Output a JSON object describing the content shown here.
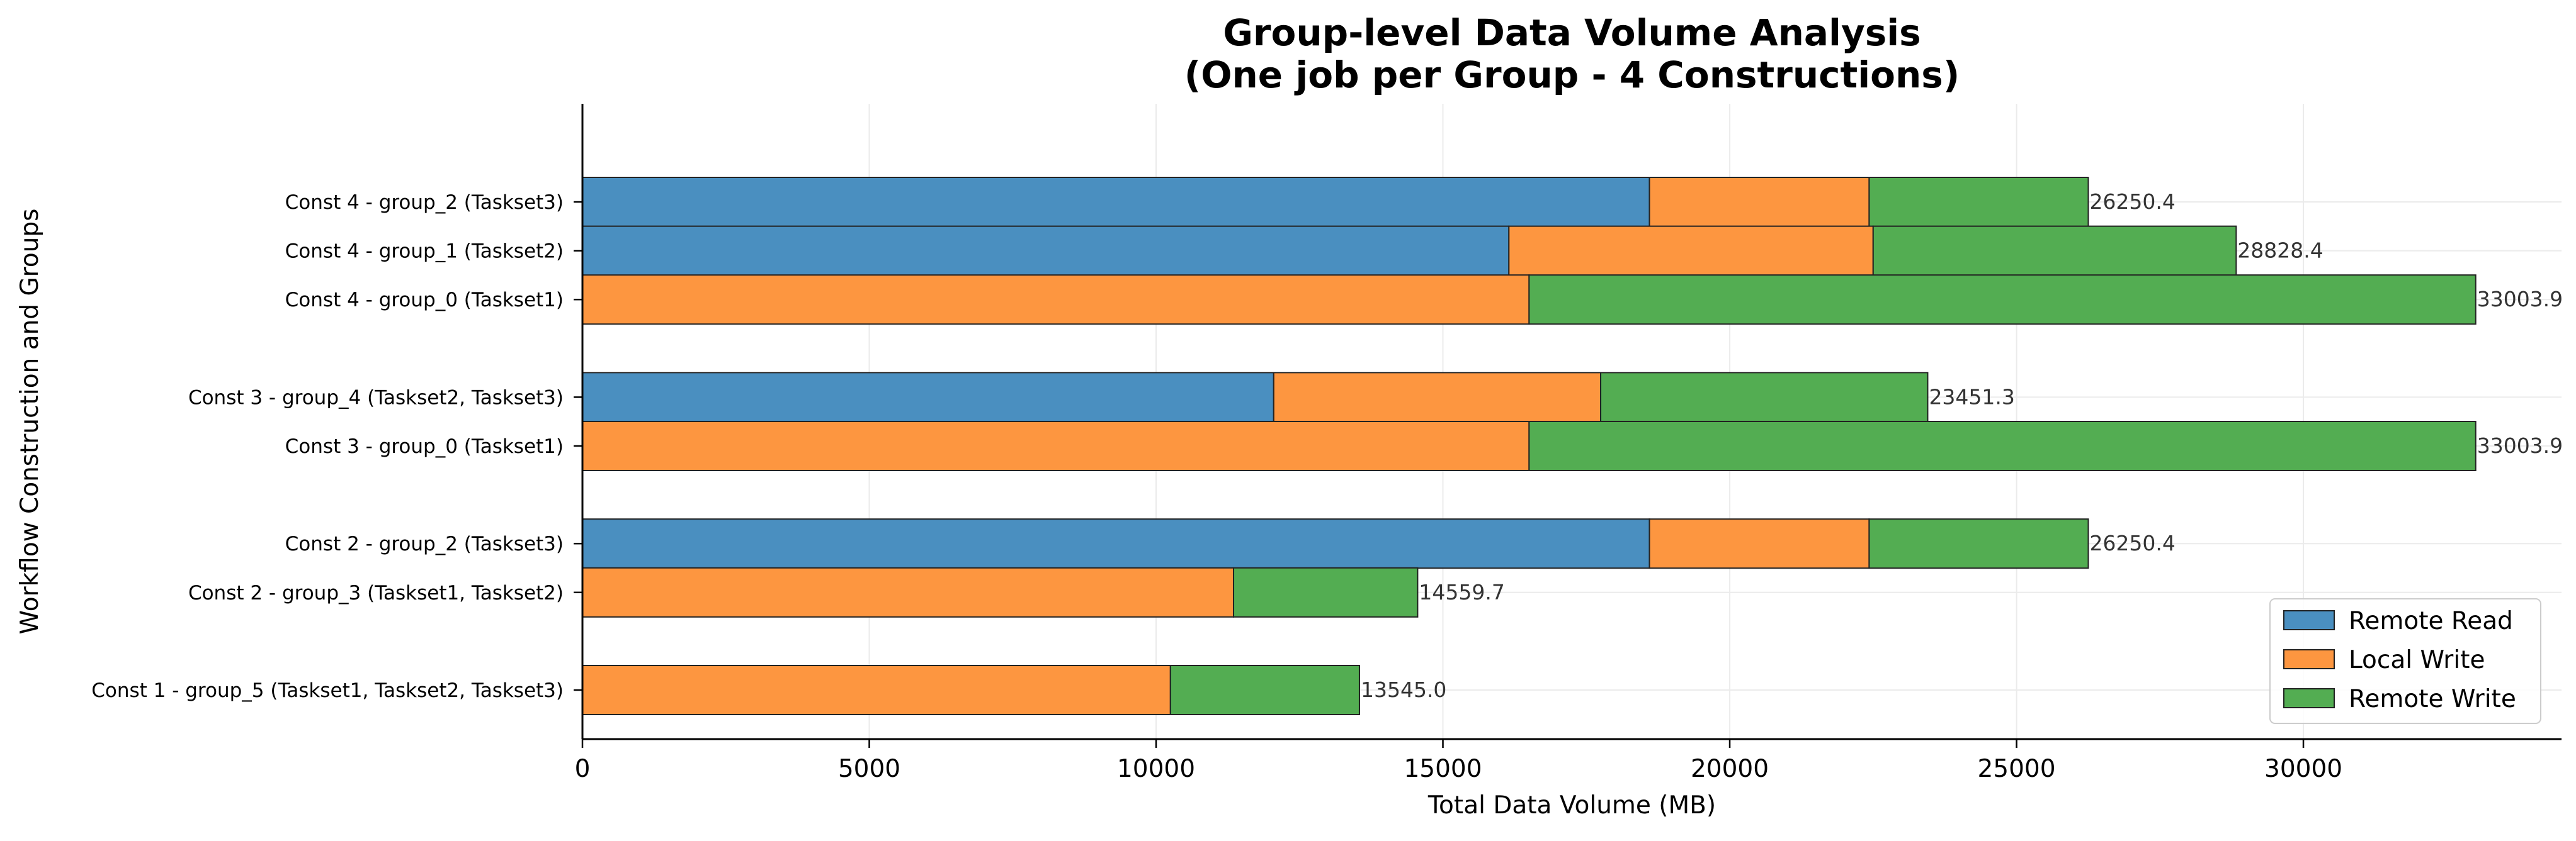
{
  "chart_data": {
    "type": "bar",
    "orientation": "horizontal",
    "stacked": true,
    "title": [
      "Group-level Data Volume Analysis",
      "(One job per Group - 4 Constructions)"
    ],
    "xlabel": "Total Data Volume (MB)",
    "ylabel": "Workflow Construction and Groups",
    "xlim": [
      0,
      34500
    ],
    "xticks": [
      0,
      5000,
      10000,
      15000,
      20000,
      25000,
      30000
    ],
    "grid": true,
    "legend_position": "lower-right",
    "categories": [
      "Const 4 - group_2 (Taskset3)",
      "Const 4 - group_1 (Taskset2)",
      "Const 4 - group_0 (Taskset1)",
      "Const 3 - group_4 (Taskset2, Taskset3)",
      "Const 3 - group_0 (Taskset1)",
      "Const 2 - group_2 (Taskset3)",
      "Const 2 - group_3 (Taskset1, Taskset2)",
      "Const 1 - group_5 (Taskset1, Taskset2, Taskset3)"
    ],
    "category_slots": [
      0,
      1,
      2,
      4,
      5,
      7,
      8,
      10
    ],
    "series": [
      {
        "name": "Remote Read",
        "color": "#4a8fc0",
        "values": [
          18600,
          16150,
          0,
          12050,
          0,
          18600,
          0,
          0
        ]
      },
      {
        "name": "Local Write",
        "color": "#fd9640",
        "values": [
          3830,
          6350,
          16502,
          5700,
          16502,
          3830,
          11350,
          10250
        ]
      },
      {
        "name": "Remote Write",
        "color": "#53ad52",
        "values": [
          3820.4,
          6328.4,
          16501.9,
          5701.3,
          16501.9,
          3820.4,
          3209.7,
          3295.0
        ]
      }
    ],
    "totals": [
      "26250.4",
      "28828.4",
      "33003.9",
      "23451.3",
      "33003.9",
      "26250.4",
      "14559.7",
      "13545.0"
    ]
  }
}
